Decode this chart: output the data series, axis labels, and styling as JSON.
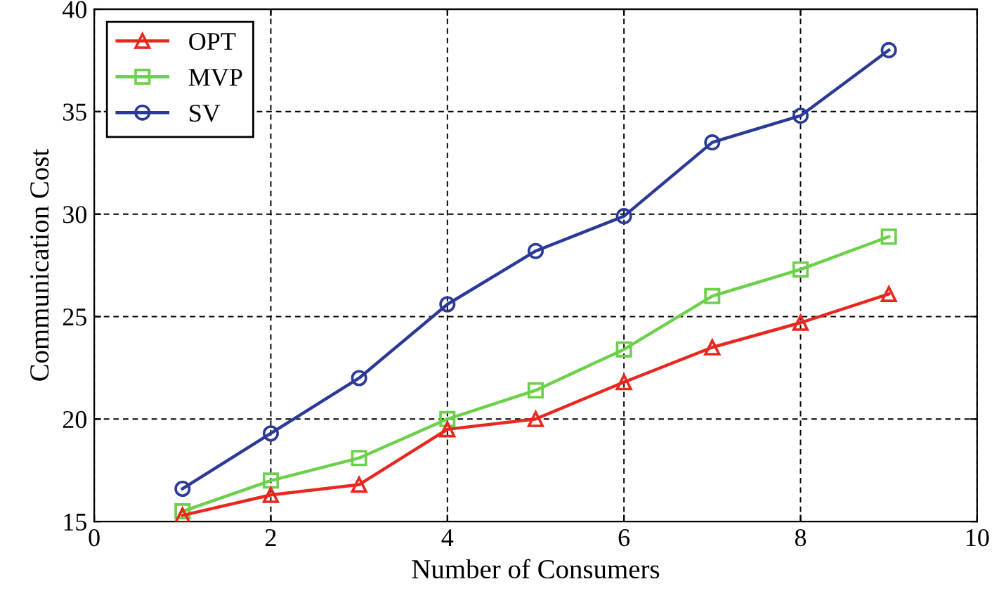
{
  "chart_data": {
    "type": "line",
    "xlabel": "Number of Consumers",
    "ylabel": "Communication Cost",
    "x": [
      1,
      2,
      3,
      4,
      5,
      6,
      7,
      8,
      9
    ],
    "series": [
      {
        "name": "OPT",
        "color": "#e8281e",
        "marker": "triangle",
        "values": [
          15.3,
          16.3,
          16.8,
          19.5,
          20.0,
          21.8,
          23.5,
          24.7,
          26.1
        ]
      },
      {
        "name": "MVP",
        "color": "#6cd04a",
        "marker": "square",
        "values": [
          15.5,
          17.0,
          18.1,
          20.0,
          21.4,
          23.4,
          26.0,
          27.3,
          28.9
        ]
      },
      {
        "name": "SV",
        "color": "#2b3a97",
        "marker": "circle",
        "values": [
          16.6,
          19.3,
          22.0,
          25.6,
          28.2,
          29.9,
          33.5,
          34.8,
          38.0
        ]
      }
    ],
    "xlim": [
      0,
      10
    ],
    "xticks": [
      0,
      2,
      4,
      6,
      8,
      10
    ],
    "ylim": [
      15,
      40
    ],
    "yticks": [
      15,
      20,
      25,
      30,
      35,
      40
    ],
    "grid": true,
    "legend": "top left",
    "line_style": "solid"
  }
}
